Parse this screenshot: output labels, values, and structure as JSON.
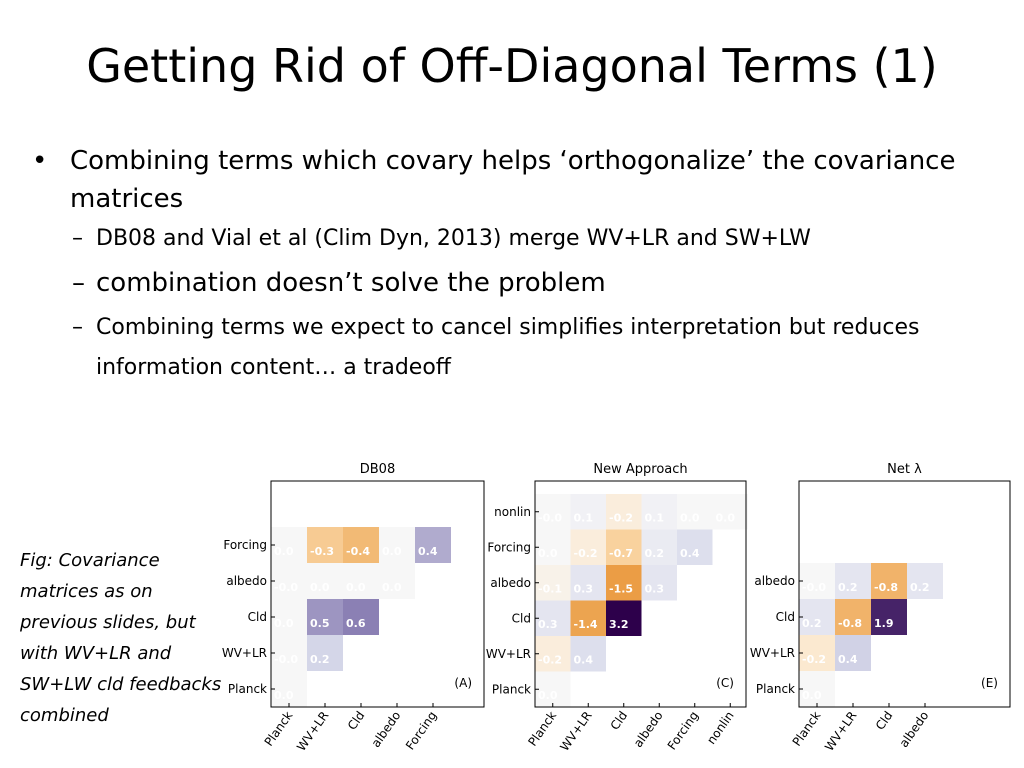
{
  "slide": {
    "title": "Getting Rid of Off-Diagonal Terms (1)",
    "bullets": [
      {
        "marker": "•",
        "text": "Combining terms which covary helps ‘orthogonalize’ the covariance matrices",
        "subs": [
          {
            "marker": "–",
            "text": "DB08 and Vial et al (Clim Dyn, 2013) merge WV+LR and SW+LW",
            "size": "normal"
          },
          {
            "marker": "–",
            "text": "combination doesn’t solve the problem",
            "size": "big"
          },
          {
            "marker": "–",
            "text": "Combining terms we expect to cancel simplifies interpretation but reduces information content… a tradeoff",
            "size": "normal"
          }
        ]
      }
    ],
    "caption": "Fig: Covariance matrices as on previous slides, but with WV+LR and SW+LW cld feedbacks combined"
  },
  "chart_data": [
    {
      "type": "heatmap",
      "title": "DB08",
      "panel_label": "(A)",
      "x_labels": [
        "Planck",
        "WV+LR",
        "Cld",
        "albedo",
        "Forcing"
      ],
      "y_labels": [
        "Planck",
        "WV+LR",
        "Cld",
        "albedo",
        "Forcing"
      ],
      "cells": [
        {
          "row": 0,
          "col": 0,
          "value": "0.0"
        },
        {
          "row": 1,
          "col": 0,
          "value": "-0.0"
        },
        {
          "row": 1,
          "col": 1,
          "value": "0.2"
        },
        {
          "row": 2,
          "col": 0,
          "value": "0.0"
        },
        {
          "row": 2,
          "col": 1,
          "value": "0.5"
        },
        {
          "row": 2,
          "col": 2,
          "value": "0.6"
        },
        {
          "row": 3,
          "col": 0,
          "value": "-0.0"
        },
        {
          "row": 3,
          "col": 1,
          "value": "0.0"
        },
        {
          "row": 3,
          "col": 2,
          "value": "0.0"
        },
        {
          "row": 3,
          "col": 3,
          "value": "0.0"
        },
        {
          "row": 4,
          "col": 0,
          "value": "0.0"
        },
        {
          "row": 4,
          "col": 1,
          "value": "-0.3"
        },
        {
          "row": 4,
          "col": 2,
          "value": "-0.4"
        },
        {
          "row": 4,
          "col": 3,
          "value": "0.0"
        },
        {
          "row": 4,
          "col": 4,
          "value": "0.4"
        }
      ]
    },
    {
      "type": "heatmap",
      "title": "New Approach",
      "panel_label": "(C)",
      "x_labels": [
        "Planck",
        "WV+LR",
        "Cld",
        "albedo",
        "Forcing",
        "nonlin"
      ],
      "y_labels": [
        "Planck",
        "WV+LR",
        "Cld",
        "albedo",
        "Forcing",
        "nonlin"
      ],
      "cells": [
        {
          "row": 0,
          "col": 0,
          "value": "0.0"
        },
        {
          "row": 1,
          "col": 0,
          "value": "-0.2"
        },
        {
          "row": 1,
          "col": 1,
          "value": "0.4"
        },
        {
          "row": 2,
          "col": 0,
          "value": "0.3"
        },
        {
          "row": 2,
          "col": 1,
          "value": "-1.4"
        },
        {
          "row": 2,
          "col": 2,
          "value": "3.2"
        },
        {
          "row": 3,
          "col": 0,
          "value": "-0.1"
        },
        {
          "row": 3,
          "col": 1,
          "value": "0.3"
        },
        {
          "row": 3,
          "col": 2,
          "value": "-1.5"
        },
        {
          "row": 3,
          "col": 3,
          "value": "0.3"
        },
        {
          "row": 4,
          "col": 0,
          "value": "0.0"
        },
        {
          "row": 4,
          "col": 1,
          "value": "-0.2"
        },
        {
          "row": 4,
          "col": 2,
          "value": "-0.7"
        },
        {
          "row": 4,
          "col": 3,
          "value": "0.2"
        },
        {
          "row": 4,
          "col": 4,
          "value": "0.4"
        },
        {
          "row": 5,
          "col": 0,
          "value": "-0.0"
        },
        {
          "row": 5,
          "col": 1,
          "value": "0.1"
        },
        {
          "row": 5,
          "col": 2,
          "value": "-0.2"
        },
        {
          "row": 5,
          "col": 3,
          "value": "0.1"
        },
        {
          "row": 5,
          "col": 4,
          "value": "0.0"
        },
        {
          "row": 5,
          "col": 5,
          "value": "0.0"
        }
      ]
    },
    {
      "type": "heatmap",
      "title": "Net λ",
      "panel_label": "(E)",
      "x_labels": [
        "Planck",
        "WV+LR",
        "Cld",
        "albedo"
      ],
      "y_labels": [
        "Planck",
        "WV+LR",
        "Cld",
        "albedo"
      ],
      "cells": [
        {
          "row": 0,
          "col": 0,
          "value": "0.0"
        },
        {
          "row": 1,
          "col": 0,
          "value": "-0.2"
        },
        {
          "row": 1,
          "col": 1,
          "value": "0.4"
        },
        {
          "row": 2,
          "col": 0,
          "value": "0.2"
        },
        {
          "row": 2,
          "col": 1,
          "value": "-0.8"
        },
        {
          "row": 2,
          "col": 2,
          "value": "1.9"
        },
        {
          "row": 3,
          "col": 0,
          "value": "-0.0"
        },
        {
          "row": 3,
          "col": 1,
          "value": "0.2"
        },
        {
          "row": 3,
          "col": 2,
          "value": "-0.8"
        },
        {
          "row": 3,
          "col": 3,
          "value": "0.2"
        }
      ]
    }
  ]
}
